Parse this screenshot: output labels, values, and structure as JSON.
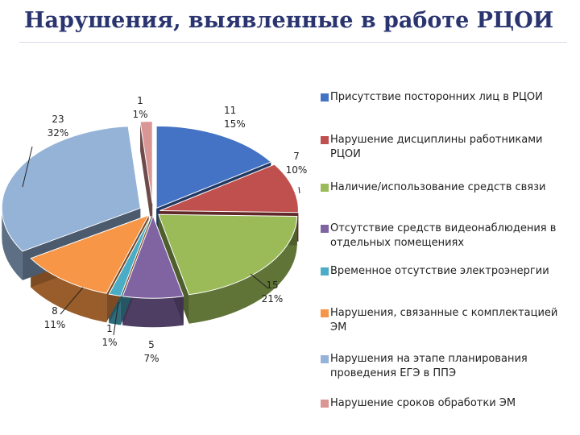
{
  "title": "Нарушения, выявленные в работе РЦОИ",
  "chart_data": {
    "type": "pie",
    "title": "Нарушения, выявленные в работе РЦОИ",
    "legend_position": "right",
    "slices": [
      {
        "name": "Присутствие посторонних лиц в РЦОИ",
        "value": 11,
        "percent": "15%",
        "color": "#4472c4"
      },
      {
        "name": "Нарушение дисциплины работниками РЦОИ",
        "value": 7,
        "percent": "10%",
        "color": "#c0504d"
      },
      {
        "name": "Наличие/использование средств связи",
        "value": 15,
        "percent": "21%",
        "color": "#9bbb59"
      },
      {
        "name": "Отсутствие средств видеонаблюдения в отдельных помещениях",
        "value": 5,
        "percent": "7%",
        "color": "#8064a2"
      },
      {
        "name": "Временное отсутствие электроэнергии",
        "value": 1,
        "percent": "1%",
        "color": "#4bacc6"
      },
      {
        "name": "Нарушения, связанные с комплектацией ЭМ",
        "value": 8,
        "percent": "11%",
        "color": "#f79646"
      },
      {
        "name": "Нарушения на этапе планирования проведения ЕГЭ в ППЭ",
        "value": 23,
        "percent": "32%",
        "color": "#95b3d7"
      },
      {
        "name": "Нарушение сроков обработки ЭМ",
        "value": 1,
        "percent": "1%",
        "color": "#d99694"
      }
    ]
  }
}
